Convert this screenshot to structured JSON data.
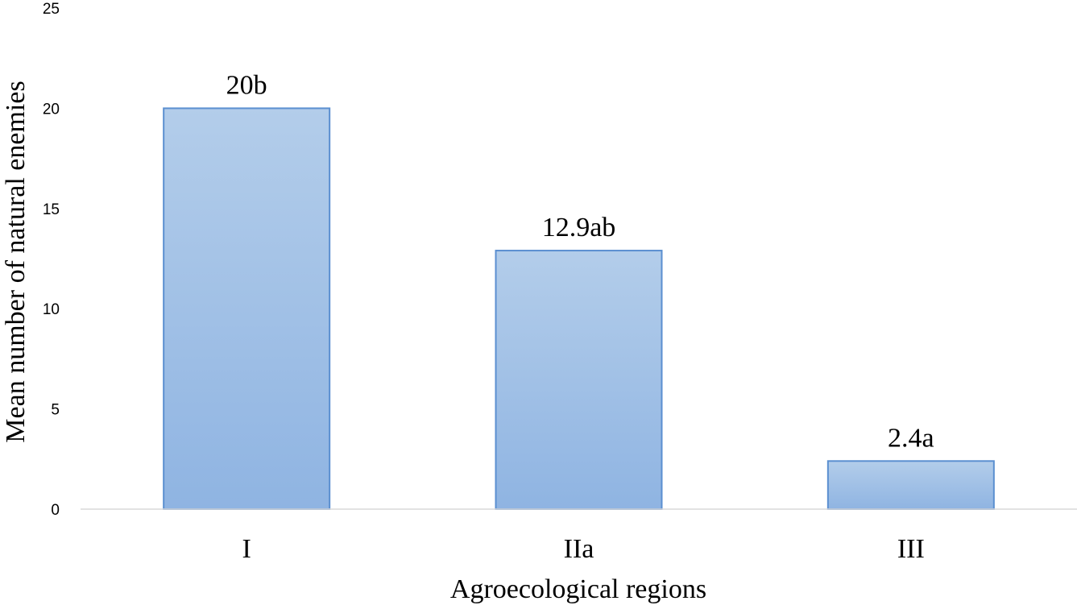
{
  "chart_data": {
    "type": "bar",
    "title": "",
    "xlabel": "Agroecological regions",
    "ylabel": "Mean number of natural enemies",
    "categories": [
      "I",
      "IIa",
      "III"
    ],
    "values": [
      20,
      12.9,
      2.4
    ],
    "data_labels": [
      "20b",
      "12.9ab",
      "2.4a"
    ],
    "ylim": [
      0,
      25
    ],
    "yticks": [
      0,
      5,
      10,
      15,
      20,
      25
    ],
    "grid": false,
    "legend": "none",
    "colors": {
      "bar_fill_top": "#b3cdea",
      "bar_fill_bottom": "#8fb4e2",
      "bar_stroke": "#5b8fd0",
      "axis": "#d9d9d9"
    }
  }
}
